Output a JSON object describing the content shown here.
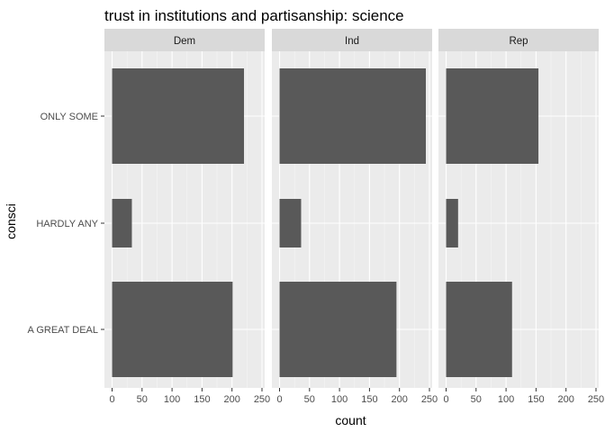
{
  "chart_data": {
    "type": "bar",
    "orientation": "horizontal",
    "title": "trust in institutions and partisanship: science",
    "xlabel": "count",
    "ylabel": "consci",
    "categories": [
      "ONLY SOME",
      "HARDLY ANY",
      "A GREAT DEAL"
    ],
    "xlim": [
      0,
      260
    ],
    "xticks": [
      0,
      50,
      100,
      150,
      200,
      250
    ],
    "facets": [
      {
        "name": "Dem",
        "values": [
          220,
          33,
          201
        ]
      },
      {
        "name": "Ind",
        "values": [
          244,
          36,
          195
        ]
      },
      {
        "name": "Rep",
        "values": [
          154,
          20,
          110
        ]
      }
    ],
    "colors": {
      "bar": "#595959",
      "panel_bg": "#ebebeb",
      "strip_bg": "#d9d9d9",
      "grid_major": "#ffffff",
      "grid_minor": "#f5f5f5"
    },
    "grid": true,
    "legend": "none"
  }
}
